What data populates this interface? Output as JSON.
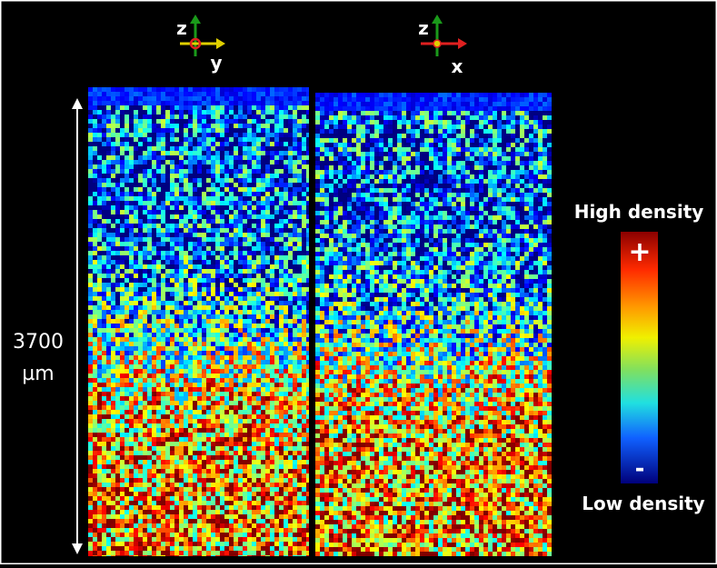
{
  "panels": [
    {
      "axis_up": "z",
      "axis_right": "y"
    },
    {
      "axis_up": "z",
      "axis_right": "x"
    }
  ],
  "scale": {
    "value": "3700",
    "unit": "µm"
  },
  "colorbar": {
    "high_label": "High density",
    "low_label": "Low density",
    "plus": "+",
    "minus": "-"
  }
}
